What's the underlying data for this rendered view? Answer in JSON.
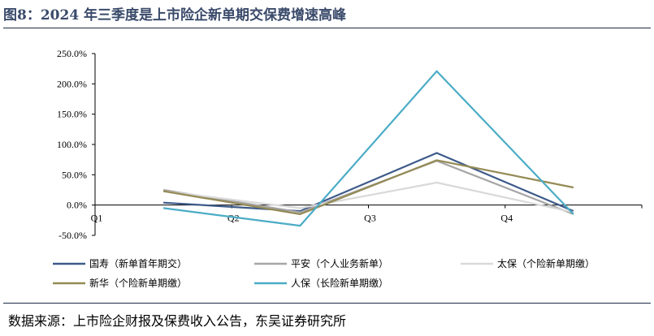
{
  "figure": {
    "title": "图8：2024 年三季度是上市险企新单期交保费增速高峰",
    "source": "数据来源：上市险企财报及保费收入公告，东吴证券研究所"
  },
  "chart_data": {
    "type": "line",
    "title": "",
    "xlabel": "",
    "ylabel": "",
    "categories": [
      "Q1",
      "Q2",
      "Q3",
      "Q4"
    ],
    "ylim": [
      -50,
      250
    ],
    "yticks": [
      -50,
      0,
      50,
      100,
      150,
      200,
      250
    ],
    "ytick_labels": [
      "-50.0%",
      "0.0%",
      "50.0%",
      "100.0%",
      "150.0%",
      "200.0%",
      "250.0%"
    ],
    "grid": false,
    "legend_position": "bottom",
    "series": [
      {
        "name": "国寿（新单首年期交）",
        "color": "#3d5a8a",
        "values": [
          4,
          -10,
          86,
          -10
        ]
      },
      {
        "name": "平安（个人业务新单）",
        "color": "#a6a6a6",
        "values": [
          25,
          -12,
          73,
          -15
        ]
      },
      {
        "name": "太保（个险新单期缴）",
        "color": "#d9d9d9",
        "values": [
          23,
          -5,
          37,
          -12
        ]
      },
      {
        "name": "新华（个险新单期缴）",
        "color": "#948a54",
        "values": [
          23,
          -15,
          74,
          29
        ]
      },
      {
        "name": "人保（长险新单期缴）",
        "color": "#4bacc6",
        "values": [
          -5,
          -34,
          221,
          -15
        ]
      }
    ]
  }
}
